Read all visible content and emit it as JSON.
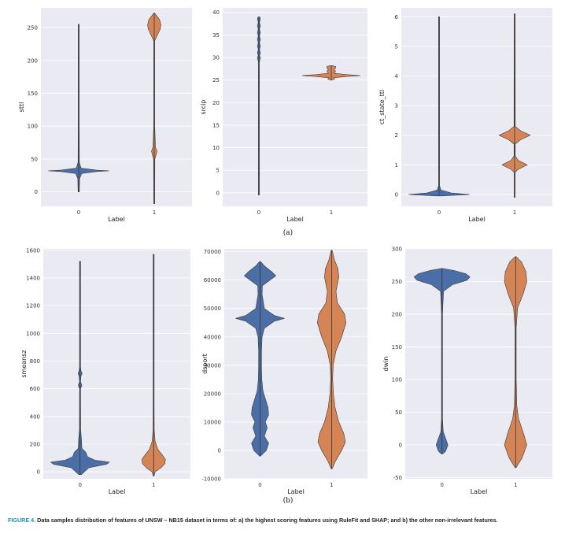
{
  "figure": {
    "sublabels": [
      "(a)",
      "(b)"
    ],
    "caption_label": "FIGURE 4.",
    "caption_text": "Data samples distribution of features of UNSW – NB15 dataset in terms of: a) the highest scoring features using RuleFit and SHAP; and b) the other non-irrelevant features.",
    "colors": {
      "class0": "#4c6ea6",
      "class1": "#d58456",
      "panel_bg": "#eaeaf2",
      "grid": "#ffffff"
    }
  },
  "chart_data": [
    {
      "type": "violin",
      "ylabel": "sttl",
      "xlabel": "Label",
      "categories": [
        "0",
        "1"
      ],
      "ylim": [
        -22,
        280
      ],
      "yticks": [
        0,
        50,
        100,
        150,
        200,
        250
      ],
      "series": [
        {
          "name": "0",
          "min": 0,
          "max": 255,
          "profile": [
            [
              0,
              0.02
            ],
            [
              20,
              0.03
            ],
            [
              28,
              0.1
            ],
            [
              31,
              0.6
            ],
            [
              32,
              1.0
            ],
            [
              33,
              0.6
            ],
            [
              36,
              0.08
            ],
            [
              45,
              0.02
            ],
            [
              100,
              0.012
            ],
            [
              255,
              0.012
            ]
          ]
        },
        {
          "name": "1",
          "min": -18,
          "max": 272,
          "profile": [
            [
              -18,
              0
            ],
            [
              0,
              0.01
            ],
            [
              50,
              0.02
            ],
            [
              58,
              0.07
            ],
            [
              62,
              0.09
            ],
            [
              68,
              0.04
            ],
            [
              100,
              0.012
            ],
            [
              230,
              0.015
            ],
            [
              240,
              0.12
            ],
            [
              248,
              0.2
            ],
            [
              254,
              0.22
            ],
            [
              262,
              0.18
            ],
            [
              268,
              0.08
            ],
            [
              272,
              0
            ]
          ]
        }
      ]
    },
    {
      "type": "violin",
      "ylabel": "srcip",
      "xlabel": "Label",
      "categories": [
        "0",
        "1"
      ],
      "ylim": [
        -3,
        41
      ],
      "yticks": [
        0,
        5,
        10,
        15,
        20,
        25,
        30,
        35,
        40
      ],
      "series": [
        {
          "name": "0",
          "min": -0.5,
          "max": 39,
          "profile": [
            [
              -0.5,
              0.012
            ],
            [
              29,
              0.012
            ],
            [
              30,
              0.05
            ],
            [
              30.5,
              0.02
            ],
            [
              31,
              0.05
            ],
            [
              31.8,
              0.02
            ],
            [
              32.5,
              0.05
            ],
            [
              33.3,
              0.02
            ],
            [
              34,
              0.05
            ],
            [
              34.8,
              0.02
            ],
            [
              35.5,
              0.05
            ],
            [
              36.3,
              0.02
            ],
            [
              37,
              0.05
            ],
            [
              37.8,
              0.02
            ],
            [
              38.5,
              0.05
            ],
            [
              39,
              0.03
            ]
          ]
        },
        {
          "name": "1",
          "min": 25,
          "max": 28.2,
          "profile": [
            [
              25,
              0
            ],
            [
              25.2,
              0.12
            ],
            [
              25.5,
              0.08
            ],
            [
              25.8,
              0.55
            ],
            [
              26,
              1.0
            ],
            [
              26.2,
              0.55
            ],
            [
              26.5,
              0.1
            ],
            [
              27,
              0.15
            ],
            [
              27.3,
              0.1
            ],
            [
              27.7,
              0.15
            ],
            [
              28,
              0.15
            ],
            [
              28.2,
              0
            ]
          ]
        }
      ]
    },
    {
      "type": "violin",
      "ylabel": "ct_state_ttl",
      "xlabel": "Label",
      "categories": [
        "0",
        "1"
      ],
      "ylim": [
        -0.4,
        6.3
      ],
      "yticks": [
        0,
        1,
        2,
        3,
        4,
        5,
        6
      ],
      "series": [
        {
          "name": "0",
          "min": -0.05,
          "max": 6,
          "profile": [
            [
              -0.05,
              0.1
            ],
            [
              0,
              1.0
            ],
            [
              0.05,
              0.4
            ],
            [
              0.15,
              0.06
            ],
            [
              0.3,
              0.015
            ],
            [
              6,
              0.012
            ]
          ]
        },
        {
          "name": "1",
          "min": -0.1,
          "max": 6.1,
          "profile": [
            [
              -0.1,
              0.01
            ],
            [
              0.75,
              0.015
            ],
            [
              0.85,
              0.12
            ],
            [
              1,
              0.42
            ],
            [
              1.15,
              0.12
            ],
            [
              1.3,
              0.02
            ],
            [
              1.7,
              0.02
            ],
            [
              1.85,
              0.2
            ],
            [
              2,
              0.52
            ],
            [
              2.15,
              0.2
            ],
            [
              2.3,
              0.02
            ],
            [
              6.1,
              0.012
            ]
          ]
        }
      ]
    },
    {
      "type": "violin",
      "ylabel": "smeansz",
      "xlabel": "Label",
      "categories": [
        "0",
        "1"
      ],
      "ylim": [
        -50,
        1610
      ],
      "yticks": [
        0,
        200,
        400,
        600,
        800,
        1000,
        1200,
        1400,
        1600
      ],
      "series": [
        {
          "name": "0",
          "min": -20,
          "max": 1520,
          "profile": [
            [
              -20,
              0.04
            ],
            [
              30,
              0.3
            ],
            [
              55,
              0.9
            ],
            [
              70,
              1.0
            ],
            [
              85,
              0.5
            ],
            [
              110,
              0.25
            ],
            [
              140,
              0.2
            ],
            [
              170,
              0.06
            ],
            [
              230,
              0.05
            ],
            [
              300,
              0.02
            ],
            [
              600,
              0.015
            ],
            [
              625,
              0.06
            ],
            [
              650,
              0.015
            ],
            [
              690,
              0.03
            ],
            [
              710,
              0.07
            ],
            [
              730,
              0.03
            ],
            [
              760,
              0.015
            ],
            [
              1520,
              0.012
            ]
          ]
        },
        {
          "name": "1",
          "min": -30,
          "max": 1570,
          "profile": [
            [
              -30,
              0
            ],
            [
              0,
              0.05
            ],
            [
              30,
              0.25
            ],
            [
              60,
              0.38
            ],
            [
              90,
              0.4
            ],
            [
              120,
              0.3
            ],
            [
              160,
              0.15
            ],
            [
              220,
              0.05
            ],
            [
              300,
              0.02
            ],
            [
              500,
              0.015
            ],
            [
              1570,
              0.012
            ]
          ]
        }
      ]
    },
    {
      "type": "violin",
      "ylabel": "dsport",
      "xlabel": "Label",
      "categories": [
        "0",
        "1"
      ],
      "ylim": [
        -10000,
        71000
      ],
      "yticks": [
        -10000,
        0,
        10000,
        20000,
        30000,
        40000,
        50000,
        60000,
        70000
      ],
      "series": [
        {
          "name": "0",
          "min": -2000,
          "max": 66500,
          "profile": [
            [
              -2000,
              0
            ],
            [
              0,
              0.22
            ],
            [
              2500,
              0.3
            ],
            [
              5000,
              0.15
            ],
            [
              8000,
              0.25
            ],
            [
              10000,
              0.18
            ],
            [
              12500,
              0.3
            ],
            [
              15000,
              0.28
            ],
            [
              17000,
              0.22
            ],
            [
              19000,
              0.16
            ],
            [
              21000,
              0.1
            ],
            [
              25000,
              0.06
            ],
            [
              30000,
              0.05
            ],
            [
              35000,
              0.05
            ],
            [
              40000,
              0.07
            ],
            [
              43000,
              0.15
            ],
            [
              45500,
              0.5
            ],
            [
              46500,
              0.85
            ],
            [
              47500,
              0.5
            ],
            [
              50000,
              0.15
            ],
            [
              55000,
              0.07
            ],
            [
              58000,
              0.08
            ],
            [
              60000,
              0.35
            ],
            [
              61500,
              0.55
            ],
            [
              63000,
              0.4
            ],
            [
              65000,
              0.15
            ],
            [
              66500,
              0
            ]
          ]
        },
        {
          "name": "1",
          "min": -6500,
          "max": 70500,
          "profile": [
            [
              -6500,
              0
            ],
            [
              -4000,
              0.12
            ],
            [
              0,
              0.35
            ],
            [
              3000,
              0.48
            ],
            [
              6000,
              0.42
            ],
            [
              10000,
              0.25
            ],
            [
              15000,
              0.12
            ],
            [
              20000,
              0.06
            ],
            [
              25000,
              0.035
            ],
            [
              30000,
              0.05
            ],
            [
              35000,
              0.15
            ],
            [
              40000,
              0.35
            ],
            [
              45000,
              0.5
            ],
            [
              48000,
              0.45
            ],
            [
              52000,
              0.2
            ],
            [
              56000,
              0.15
            ],
            [
              61000,
              0.25
            ],
            [
              64000,
              0.22
            ],
            [
              67000,
              0.1
            ],
            [
              70500,
              0
            ]
          ]
        }
      ]
    },
    {
      "type": "violin",
      "ylabel": "dwin",
      "xlabel": "Label",
      "categories": [
        "0",
        "1"
      ],
      "ylim": [
        -52,
        300
      ],
      "yticks": [
        -50,
        0,
        50,
        100,
        150,
        200,
        250,
        300
      ],
      "series": [
        {
          "name": "0",
          "min": -14,
          "max": 270,
          "profile": [
            [
              -14,
              0
            ],
            [
              -10,
              0.12
            ],
            [
              0,
              0.2
            ],
            [
              10,
              0.12
            ],
            [
              20,
              0.04
            ],
            [
              40,
              0.015
            ],
            [
              200,
              0.015
            ],
            [
              235,
              0.05
            ],
            [
              245,
              0.35
            ],
            [
              252,
              0.85
            ],
            [
              257,
              0.95
            ],
            [
              262,
              0.8
            ],
            [
              267,
              0.4
            ],
            [
              270,
              0
            ]
          ]
        },
        {
          "name": "1",
          "min": -35,
          "max": 288,
          "profile": [
            [
              -35,
              0
            ],
            [
              -20,
              0.22
            ],
            [
              0,
              0.38
            ],
            [
              20,
              0.25
            ],
            [
              40,
              0.1
            ],
            [
              60,
              0.04
            ],
            [
              100,
              0.02
            ],
            [
              180,
              0.02
            ],
            [
              210,
              0.07
            ],
            [
              230,
              0.25
            ],
            [
              250,
              0.38
            ],
            [
              265,
              0.35
            ],
            [
              280,
              0.2
            ],
            [
              288,
              0
            ]
          ]
        }
      ]
    }
  ]
}
